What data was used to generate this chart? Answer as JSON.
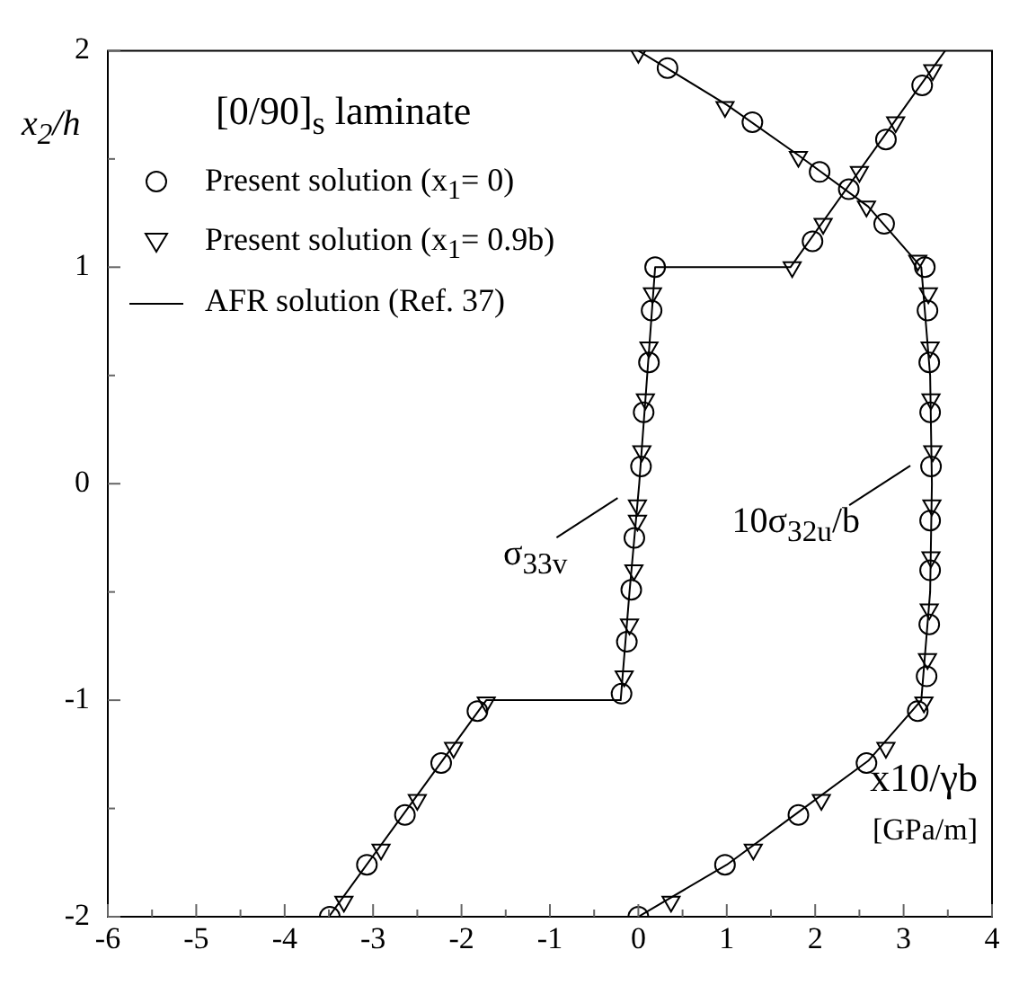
{
  "chart_data": {
    "type": "scatter",
    "legend_title": "[0/90]$_{s}$ laminate",
    "ylabel": "x$_{2}$/h",
    "xlabel": "x10/γb",
    "xlim": [
      -6,
      4
    ],
    "ylim": [
      -2,
      2
    ],
    "xticks": [
      -6,
      {
        "value": -5.5,
        "label": null
      },
      -5,
      {
        "value": -4.5,
        "label": null
      },
      -4,
      {
        "value": -3.5,
        "label": null
      },
      -3,
      {
        "value": -2.5,
        "label": null
      },
      -2,
      {
        "value": -1.5,
        "label": null
      },
      -1,
      {
        "value": -0.5,
        "label": null
      },
      0,
      {
        "value": 0.5,
        "label": null
      },
      1,
      {
        "value": 1.5,
        "label": null
      },
      2,
      {
        "value": 2.5,
        "label": null
      },
      3,
      {
        "value": 3.5,
        "label": null
      },
      4
    ],
    "yticks": [
      -2,
      {
        "value": -1.5,
        "label": null
      },
      -1,
      {
        "value": -0.5,
        "label": null
      },
      0,
      {
        "value": 0.5,
        "label": null
      },
      1,
      {
        "value": 1.5,
        "label": null
      },
      2
    ],
    "grid": false,
    "legend": "top left",
    "series": [
      {
        "name": "Present solution (x$_{1}$= 0)",
        "type": "scatter",
        "marker": "circle",
        "color": "#000000",
        "x": [
          -3.49,
          -3.07,
          -2.64,
          -2.23,
          -1.82,
          -0.19,
          -0.13,
          -0.08,
          -0.045,
          0.03,
          0.06,
          0.12,
          0.15,
          0.19,
          1.97,
          2.38,
          2.8,
          3.21,
          0,
          0.98,
          1.81,
          2.58,
          3.16,
          3.26,
          3.29,
          3.3,
          3.3,
          3.31,
          3.3,
          3.29,
          3.27,
          3.24,
          2.78,
          2.05,
          1.29,
          0.33
        ],
        "values": [
          -2,
          -1.76,
          -1.53,
          -1.29,
          -1.05,
          -0.97,
          -0.73,
          -0.49,
          -0.25,
          0.08,
          0.33,
          0.56,
          0.8,
          1.0,
          1.12,
          1.36,
          1.59,
          1.84,
          -2,
          -1.76,
          -1.53,
          -1.29,
          -1.05,
          -0.89,
          -0.65,
          -0.4,
          -0.17,
          0.08,
          0.33,
          0.56,
          0.8,
          1.0,
          1.2,
          1.44,
          1.67,
          1.92
        ]
      },
      {
        "name": "Present solution (x$_{1}$= 0.9b)",
        "type": "scatter",
        "marker": "triangle",
        "color": "#000000",
        "x": [
          -3.33,
          -2.91,
          -2.5,
          -2.09,
          -1.72,
          -0.16,
          -0.1,
          -0.05,
          -0.01,
          -0.01,
          0.04,
          0.08,
          0.12,
          0.16,
          1.74,
          2.09,
          2.5,
          2.91,
          3.33,
          0.37,
          1.3,
          2.07,
          2.8,
          3.23,
          3.27,
          3.29,
          3.31,
          3.32,
          3.33,
          3.31,
          3.3,
          3.28,
          3.16,
          2.58,
          1.81,
          0.98,
          0
        ],
        "values": [
          -1.93,
          -1.69,
          -1.46,
          -1.22,
          -1.01,
          -0.89,
          -0.65,
          -0.4,
          -0.17,
          -0.1,
          0.15,
          0.39,
          0.63,
          0.88,
          1.0,
          1.2,
          1.44,
          1.67,
          1.91,
          -1.93,
          -1.69,
          -1.46,
          -1.22,
          -1.01,
          -0.81,
          -0.58,
          -0.34,
          -0.1,
          0.15,
          0.39,
          0.63,
          0.88,
          1.03,
          1.28,
          1.51,
          1.74,
          1.99
        ]
      },
      {
        "name": "AFR solution (Ref. 37)",
        "type": "line",
        "marker": "none",
        "line_style": "solid",
        "color": "#000000",
        "x": [
          -3.5,
          -1.72,
          -0.2,
          -0.1,
          0.01,
          0.1,
          0.19,
          1.72,
          3.47,
          null,
          0,
          1,
          1.8,
          2.6,
          3.2,
          3.3,
          3.32,
          3.3,
          3.2,
          2.6,
          1.8,
          1,
          0
        ],
        "values": [
          -2,
          -1,
          -1,
          -0.5,
          0,
          0.5,
          1,
          1,
          2,
          null,
          -2,
          -1.76,
          -1.52,
          -1.28,
          -1,
          -0.5,
          0,
          0.5,
          1,
          1.28,
          1.52,
          1.75,
          2
        ]
      }
    ],
    "annotations": [
      {
        "text": "σ$_{33v}$",
        "x": 0.01,
        "y": 0.0
      },
      {
        "text": "10σ$_{32u}$/b",
        "x": 3.32,
        "y": 0.15
      },
      "[GPa/m]"
    ]
  }
}
